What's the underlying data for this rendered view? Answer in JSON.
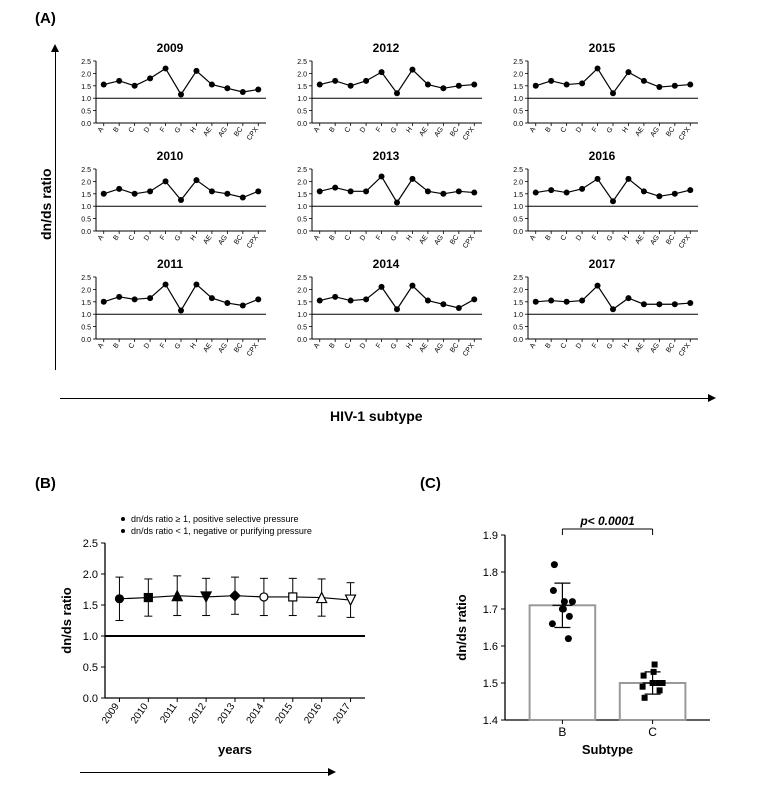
{
  "panel_labels": {
    "A": "(A)",
    "B": "(B)",
    "C": "(C)"
  },
  "axes": {
    "panelA": {
      "ylabel": "dn/ds ratio",
      "xlabel": "HIV-1 subtype"
    },
    "panelB": {
      "ylabel": "dn/ds ratio",
      "xlabel": "years",
      "legend1": "dn/ds ratio ≥ 1, positive selective pressure",
      "legend2": "dn/ds ratio < 1, negative or purifying pressure"
    },
    "panelC": {
      "ylabel": "dn/ds ratio",
      "xlabel": "Subtype",
      "pvalue": "p< 0.0001"
    }
  },
  "panelA": {
    "subtypes": [
      "A",
      "B",
      "C",
      "D",
      "F",
      "G",
      "H",
      "AE",
      "AG",
      "BC",
      "CPX"
    ],
    "ylim": [
      0,
      2.5
    ],
    "yticks": [
      0.0,
      0.5,
      1.0,
      1.5,
      2.0,
      2.5
    ],
    "refline": 1.0,
    "years": {
      "2009": [
        1.55,
        1.7,
        1.5,
        1.8,
        2.2,
        1.15,
        2.1,
        1.55,
        1.4,
        1.25,
        1.35
      ],
      "2010": [
        1.5,
        1.7,
        1.5,
        1.6,
        2.0,
        1.25,
        2.05,
        1.6,
        1.5,
        1.35,
        1.6
      ],
      "2011": [
        1.5,
        1.7,
        1.6,
        1.65,
        2.2,
        1.15,
        2.2,
        1.65,
        1.45,
        1.35,
        1.6
      ],
      "2012": [
        1.55,
        1.7,
        1.5,
        1.7,
        2.05,
        1.2,
        2.15,
        1.55,
        1.4,
        1.5,
        1.55
      ],
      "2013": [
        1.6,
        1.75,
        1.6,
        1.6,
        2.2,
        1.15,
        2.1,
        1.6,
        1.5,
        1.6,
        1.55
      ],
      "2014": [
        1.55,
        1.7,
        1.55,
        1.6,
        2.1,
        1.2,
        2.15,
        1.55,
        1.4,
        1.25,
        1.6
      ],
      "2015": [
        1.5,
        1.7,
        1.55,
        1.6,
        2.2,
        1.2,
        2.05,
        1.7,
        1.45,
        1.5,
        1.55
      ],
      "2016": [
        1.55,
        1.65,
        1.55,
        1.7,
        2.1,
        1.2,
        2.1,
        1.6,
        1.4,
        1.5,
        1.65
      ],
      "2017": [
        1.5,
        1.55,
        1.5,
        1.55,
        2.15,
        1.2,
        1.65,
        1.4,
        1.4,
        1.4,
        1.45
      ]
    },
    "marker_color": "#000000",
    "line_color": "#000000",
    "marker_size": 3,
    "line_width": 1.2
  },
  "panelB": {
    "years": [
      "2009",
      "2010",
      "2011",
      "2012",
      "2013",
      "2014",
      "2015",
      "2016",
      "2017"
    ],
    "means": [
      1.6,
      1.62,
      1.65,
      1.63,
      1.65,
      1.63,
      1.63,
      1.62,
      1.58
    ],
    "err": [
      0.35,
      0.3,
      0.32,
      0.3,
      0.3,
      0.3,
      0.3,
      0.3,
      0.28
    ],
    "ylim": [
      0,
      2.5
    ],
    "yticks": [
      0.0,
      0.5,
      1.0,
      1.5,
      2.0,
      2.5
    ],
    "refline": 1.0,
    "markers": [
      "circle",
      "square",
      "triangle",
      "triangle-down",
      "diamond",
      "circle-open",
      "square-open",
      "triangle-open",
      "triangle-down-open"
    ],
    "line_color": "#000000",
    "err_color": "#000000",
    "marker_color": "#000000",
    "line_width": 1.2,
    "err_width": 1
  },
  "panelC": {
    "subtypes": [
      "B",
      "C"
    ],
    "B_points": [
      1.66,
      1.7,
      1.72,
      1.75,
      1.7,
      1.62,
      1.82,
      1.72,
      1.68
    ],
    "C_points": [
      1.49,
      1.5,
      1.5,
      1.52,
      1.53,
      1.5,
      1.46,
      1.55,
      1.48
    ],
    "B_mean": 1.71,
    "B_sd": 0.06,
    "C_mean": 1.5,
    "C_sd": 0.03,
    "ylim": [
      1.4,
      1.9
    ],
    "yticks": [
      1.4,
      1.5,
      1.6,
      1.7,
      1.8,
      1.9
    ],
    "bar_border": "#999999",
    "bar_fill": "#ffffff",
    "marker_B": "circle",
    "marker_C": "square",
    "marker_color": "#000000",
    "err_color": "#000000"
  },
  "colors": {
    "bg": "#ffffff",
    "axis": "#000000",
    "text": "#000000"
  },
  "fonts": {
    "title": 12,
    "axis": 10,
    "tick": 8,
    "label": 14
  }
}
